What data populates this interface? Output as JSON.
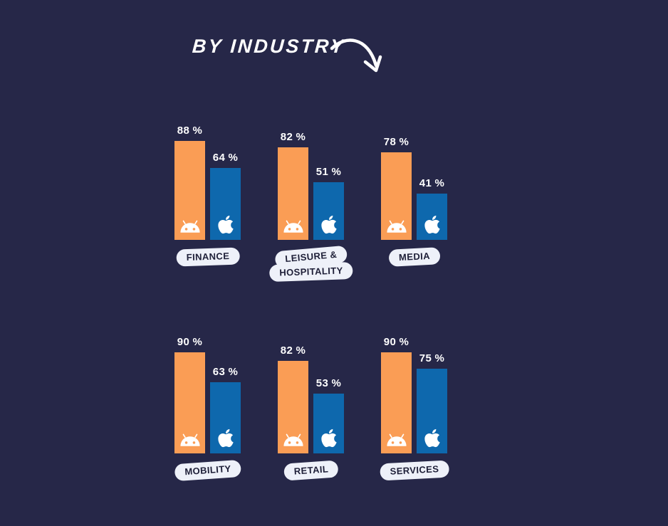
{
  "title": "BY INDUSTRY",
  "icons": {
    "title_arrow": "curved-arrow-icon",
    "android_series": "android-icon",
    "apple_series": "apple-icon"
  },
  "colors": {
    "background": "#262748",
    "android_bar": "#FA9D55",
    "apple_bar": "#0E68AD",
    "pill_background": "#EEF1F9",
    "pill_text": "#1E1F38",
    "value_text": "#FFFFFF",
    "title_text": "#FFFFFF"
  },
  "chart_data": {
    "type": "bar",
    "title": "BY INDUSTRY",
    "value_unit": "%",
    "value_label_format": "{value} %",
    "categories": [
      "FINANCE",
      "LEISURE & HOSPITALITY",
      "MEDIA",
      "MOBILITY",
      "RETAIL",
      "SERVICES"
    ],
    "category_label_lines": [
      [
        "FINANCE"
      ],
      [
        "LEISURE &",
        "HOSPITALITY"
      ],
      [
        "MEDIA"
      ],
      [
        "MOBILITY"
      ],
      [
        "RETAIL"
      ],
      [
        "SERVICES"
      ]
    ],
    "series": [
      {
        "name": "Android",
        "icon": "android-icon",
        "values": [
          88,
          82,
          78,
          90,
          82,
          90
        ]
      },
      {
        "name": "Apple",
        "icon": "apple-icon",
        "values": [
          64,
          51,
          41,
          63,
          53,
          75
        ]
      }
    ],
    "ylim": [
      0,
      100
    ],
    "grid": false,
    "axes_visible": false,
    "legend": "platform icons inside bar bases",
    "layout": "two rows of three grouped bar pairs"
  }
}
